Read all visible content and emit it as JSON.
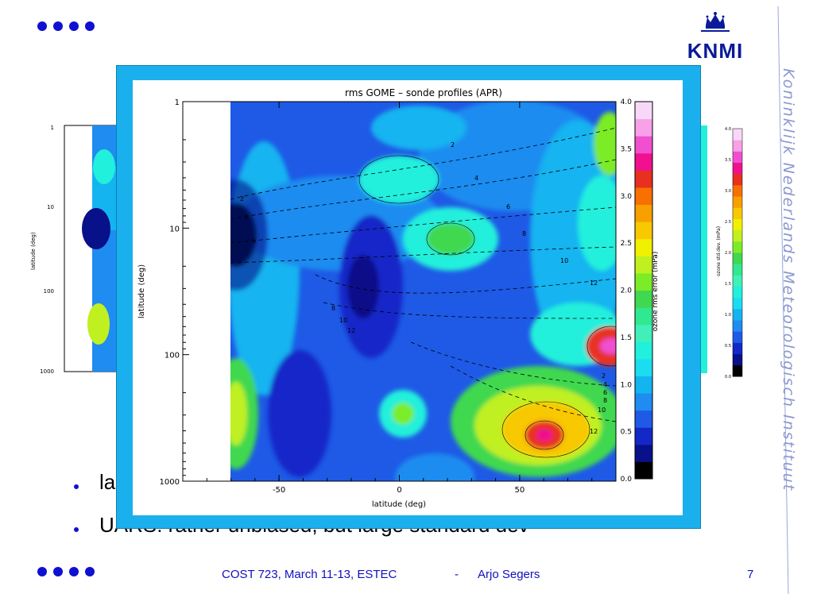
{
  "footer": {
    "left": "COST 723, March 11-13, ESTEC",
    "sep": "-",
    "author": "Arjo Segers",
    "page": "7"
  },
  "logo": {
    "text": "KNMI"
  },
  "side_text": "Koninklijk Nederlands Meteorologisch Instituut",
  "bullets": [
    {
      "text": "la"
    },
    {
      "text": "UARS: rather unbiased, but large standard dev"
    }
  ],
  "colors": {
    "accent": "#1010d0",
    "popup_border": "#1ab0ee"
  },
  "chart_data": [
    {
      "type": "heatmap",
      "title": "rms GOME – sonde profiles (APR)",
      "xlabel": "latitude (deg)",
      "ylabel": "latitude (deg)",
      "xlim": [
        -90,
        90
      ],
      "ylim": [
        1000,
        1
      ],
      "y_scale": "log",
      "x_ticks": [
        "-50",
        "0",
        "50"
      ],
      "y_ticks": [
        "1",
        "10",
        "100",
        "1000"
      ],
      "colorbar": {
        "label": "ozone rms error (mPa)",
        "ticks": [
          "0.0",
          "0.5",
          "1.0",
          "1.5",
          "2.0",
          "2.5",
          "3.0",
          "3.5",
          "4.0"
        ],
        "colors": [
          "#000000",
          "#08108a",
          "#1428c8",
          "#1e5ae6",
          "#1e8cf0",
          "#14b4f0",
          "#1cdcf0",
          "#20f0dc",
          "#40f0b8",
          "#30e890",
          "#40d850",
          "#7cec28",
          "#c0f020",
          "#f0f000",
          "#f8c800",
          "#f8a000",
          "#f87000",
          "#e83020",
          "#f01090",
          "#f050d0",
          "#f8a0e8",
          "#f8d8f8"
        ]
      },
      "contour_labels": [
        "2",
        "4",
        "6",
        "8",
        "10",
        "12",
        "2",
        "4",
        "6",
        "8",
        "10",
        "12",
        "2",
        "4",
        "6",
        "8",
        "10",
        "12"
      ],
      "grid": false,
      "legend": "colorbar-right"
    },
    {
      "type": "heatmap",
      "partial": true,
      "ylabel": "latitude (deg)",
      "y_ticks": [
        "1",
        "10",
        "100",
        "1000"
      ],
      "colorbar": {
        "label": "ozone std.dev. (mPa)",
        "ticks": [
          "0.0",
          "0.5",
          "1.0",
          "1.5",
          "2.0",
          "2.5",
          "3.0",
          "3.5",
          "4.0"
        ]
      }
    }
  ]
}
